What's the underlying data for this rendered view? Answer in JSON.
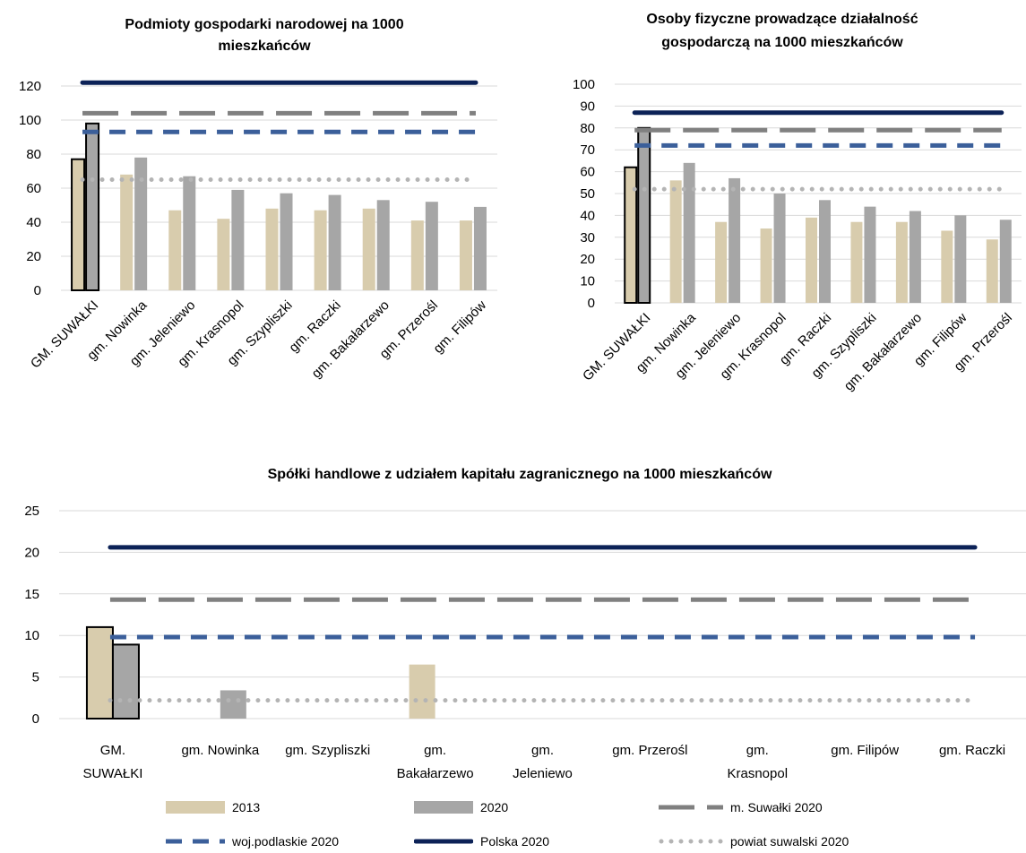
{
  "colors": {
    "y2013": "#d8ccad",
    "y2020": "#a6a6a6",
    "suwalki": "#808080",
    "woj": "#3b5f9a",
    "polska": "#0c2257",
    "powiat": "#b4b4b4"
  },
  "chart_data": [
    {
      "type": "bar",
      "title": "Podmioty gospodarki narodowej na 1000 mieszkańców",
      "title_lines": [
        "Podmioty gospodarki narodowej na 1000",
        "mieszkańców"
      ],
      "categories": [
        "GM. SUWAŁKI",
        "gm. Nowinka",
        "gm. Jeleniewo",
        "gm. Krasnopol",
        "gm. Szypliszki",
        "gm. Raczki",
        "gm. Bakałarzewo",
        "gm. Przerośl",
        "gm. Filipów"
      ],
      "series": [
        {
          "name": "2013",
          "values": [
            77,
            68,
            47,
            42,
            48,
            47,
            48,
            41,
            41
          ]
        },
        {
          "name": "2020",
          "values": [
            98,
            78,
            67,
            59,
            57,
            56,
            53,
            52,
            49
          ]
        }
      ],
      "reference_lines": [
        {
          "name": "Polska 2020",
          "value": 122
        },
        {
          "name": "m. Suwałki 2020",
          "value": 104
        },
        {
          "name": "woj.podlaskie 2020",
          "value": 93
        },
        {
          "name": "powiat suwalski 2020",
          "value": 65
        }
      ],
      "ylim": [
        0,
        120
      ],
      "yticks": [
        0,
        20,
        40,
        60,
        80,
        100,
        120
      ],
      "xlabel": "",
      "ylabel": "",
      "label_rotation": -45
    },
    {
      "type": "bar",
      "title": "Osoby fizyczne prowadzące działalność gospodarczą na 1000 mieszkańców",
      "title_lines": [
        "Osoby fizyczne prowadzące działalność",
        "gospodarczą na 1000 mieszkańców"
      ],
      "categories": [
        "GM. SUWAŁKI",
        "gm. Nowinka",
        "gm. Jeleniewo",
        "gm. Krasnopol",
        "gm. Raczki",
        "gm. Szypliszki",
        "gm. Bakałarzewo",
        "gm. Filipów",
        "gm. Przerośl"
      ],
      "series": [
        {
          "name": "2013",
          "values": [
            62,
            56,
            37,
            34,
            39,
            37,
            37,
            33,
            29
          ]
        },
        {
          "name": "2020",
          "values": [
            80,
            64,
            57,
            50,
            47,
            44,
            42,
            40,
            38
          ]
        }
      ],
      "reference_lines": [
        {
          "name": "Polska 2020",
          "value": 87
        },
        {
          "name": "m. Suwałki 2020",
          "value": 79
        },
        {
          "name": "woj.podlaskie 2020",
          "value": 72
        },
        {
          "name": "powiat suwalski 2020",
          "value": 52
        }
      ],
      "ylim": [
        0,
        100
      ],
      "yticks": [
        0,
        10,
        20,
        30,
        40,
        50,
        60,
        70,
        80,
        90,
        100
      ],
      "xlabel": "",
      "ylabel": "",
      "label_rotation": -45
    },
    {
      "type": "bar",
      "title": "Spółki handlowe z udziałem kapitału zagranicznego na 1000 mieszkańców",
      "title_lines": [
        "Spółki handlowe z udziałem kapitału zagranicznego na 1000 mieszkańców"
      ],
      "categories": [
        "GM. SUWAŁKI",
        "gm. Nowinka",
        "gm. Szypliszki",
        "gm. Bakałarzewo",
        "gm. Jeleniewo",
        "gm. Przerośl",
        "gm. Krasnopol",
        "gm. Filipów",
        "gm. Raczki"
      ],
      "category_lines": [
        [
          "GM.",
          "SUWAŁKI"
        ],
        [
          "gm. Nowinka"
        ],
        [
          "gm. Szypliszki"
        ],
        [
          "gm.",
          "Bakałarzewo"
        ],
        [
          "gm.",
          "Jeleniewo"
        ],
        [
          "gm. Przerośl"
        ],
        [
          "gm.",
          "Krasnopol"
        ],
        [
          "gm. Filipów"
        ],
        [
          "gm. Raczki"
        ]
      ],
      "series": [
        {
          "name": "2013",
          "values": [
            11,
            0,
            0,
            6.5,
            0,
            0,
            0,
            0,
            0
          ]
        },
        {
          "name": "2020",
          "values": [
            8.9,
            3.4,
            0,
            0,
            0,
            0,
            0,
            0,
            0
          ]
        }
      ],
      "reference_lines": [
        {
          "name": "Polska 2020",
          "value": 20.6
        },
        {
          "name": "m. Suwałki 2020",
          "value": 14.3
        },
        {
          "name": "woj.podlaskie 2020",
          "value": 9.8
        },
        {
          "name": "powiat suwalski 2020",
          "value": 2.2
        }
      ],
      "ylim": [
        0,
        25
      ],
      "yticks": [
        0,
        5,
        10,
        15,
        20,
        25
      ],
      "xlabel": "",
      "ylabel": "",
      "label_rotation": 0
    }
  ],
  "legend": {
    "items": [
      {
        "label": "2013",
        "style": "bar2013"
      },
      {
        "label": "2020",
        "style": "bar2020"
      },
      {
        "label": "m. Suwałki 2020",
        "style": "suwalki"
      },
      {
        "label": "woj.podlaskie 2020",
        "style": "woj"
      },
      {
        "label": "Polska 2020",
        "style": "polska"
      },
      {
        "label": "powiat suwalski 2020",
        "style": "powiat"
      }
    ]
  }
}
